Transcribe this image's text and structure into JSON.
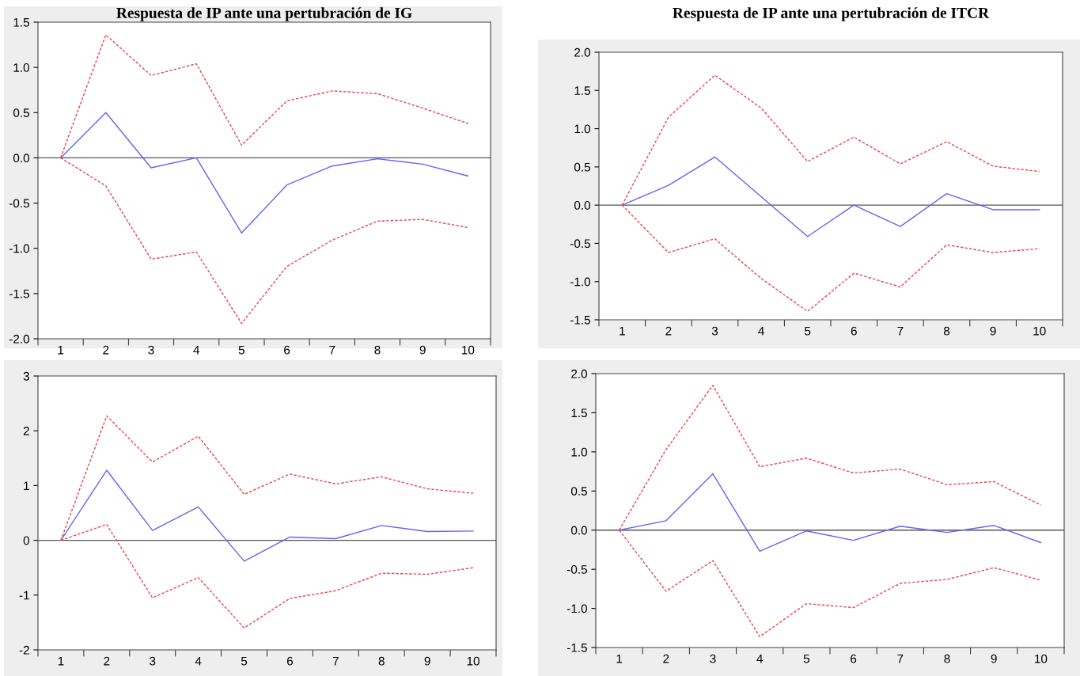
{
  "chart_data": [
    {
      "type": "line",
      "title": "Respuesta de IP ante una pertubración de IG",
      "categories": [
        "1",
        "2",
        "3",
        "4",
        "5",
        "6",
        "7",
        "8",
        "9",
        "10"
      ],
      "ylim": [
        -2.0,
        1.5
      ],
      "yticks": [
        1.5,
        {
          "value": 1,
          "label": "1.0"
        },
        0.5,
        {
          "value": 0,
          "label": "0.0"
        },
        -0.5,
        {
          "value": -1,
          "label": "-1.0"
        },
        -1.5,
        {
          "value": -2,
          "label": "-2.0"
        }
      ],
      "grid": false,
      "legend": false,
      "ref_lines": [
        {
          "axis": "y",
          "value": 0,
          "color": "#555555"
        }
      ],
      "series": [
        {
          "color": "#6464f0",
          "line_style": "solid",
          "values": [
            0,
            0.5,
            -0.11,
            0.0,
            -0.83,
            -0.3,
            -0.09,
            -0.01,
            -0.07,
            -0.2
          ]
        },
        {
          "color": "#e8484f",
          "line_style": "dashed",
          "values": [
            0,
            1.36,
            0.91,
            1.04,
            0.14,
            0.63,
            0.74,
            0.71,
            0.55,
            0.38
          ]
        },
        {
          "color": "#e8484f",
          "line_style": "dashed",
          "values": [
            0,
            -0.31,
            -1.12,
            -1.04,
            -1.83,
            -1.2,
            -0.91,
            -0.7,
            -0.68,
            -0.77
          ]
        }
      ]
    },
    {
      "type": "line",
      "title": "Respuesta de IP ante una pertubración de ITCR",
      "categories": [
        "1",
        "2",
        "3",
        "4",
        "5",
        "6",
        "7",
        "8",
        "9",
        "10"
      ],
      "ylim": [
        -1.5,
        2.0
      ],
      "yticks": [
        {
          "value": 2,
          "label": "2.0"
        },
        1.5,
        {
          "value": 1,
          "label": "1.0"
        },
        0.5,
        {
          "value": 0,
          "label": "0.0"
        },
        -0.5,
        {
          "value": -1,
          "label": "-1.0"
        },
        -1.5
      ],
      "grid": false,
      "legend": false,
      "ref_lines": [
        {
          "axis": "y",
          "value": 0,
          "color": "#555555"
        }
      ],
      "series": [
        {
          "color": "#6464f0",
          "line_style": "solid",
          "values": [
            0,
            0.26,
            0.63,
            0.11,
            -0.41,
            0.0,
            -0.28,
            0.15,
            -0.06,
            -0.06
          ]
        },
        {
          "color": "#e8484f",
          "line_style": "dashed",
          "values": [
            0,
            1.15,
            1.7,
            1.27,
            0.57,
            0.89,
            0.54,
            0.83,
            0.51,
            0.44
          ]
        },
        {
          "color": "#e8484f",
          "line_style": "dashed",
          "values": [
            0,
            -0.62,
            -0.44,
            -0.96,
            -1.39,
            -0.89,
            -1.07,
            -0.52,
            -0.62,
            -0.57
          ]
        }
      ]
    },
    {
      "type": "line",
      "categories": [
        "1",
        "2",
        "3",
        "4",
        "5",
        "6",
        "7",
        "8",
        "9",
        "10"
      ],
      "ylim": [
        -2,
        3
      ],
      "yticks": [
        3,
        2,
        1,
        0,
        -1,
        -2
      ],
      "grid": false,
      "legend": false,
      "ref_lines": [
        {
          "axis": "y",
          "value": 0,
          "color": "#555555"
        }
      ],
      "series": [
        {
          "color": "#6464f0",
          "line_style": "solid",
          "values": [
            0,
            1.28,
            0.18,
            0.61,
            -0.38,
            0.06,
            0.03,
            0.27,
            0.16,
            0.17
          ]
        },
        {
          "color": "#e8484f",
          "line_style": "dashed",
          "values": [
            0,
            2.27,
            1.43,
            1.9,
            0.84,
            1.21,
            1.03,
            1.16,
            0.94,
            0.86
          ]
        },
        {
          "color": "#e8484f",
          "line_style": "dashed",
          "values": [
            0,
            0.29,
            -1.05,
            -0.68,
            -1.6,
            -1.06,
            -0.92,
            -0.6,
            -0.62,
            -0.5
          ]
        }
      ]
    },
    {
      "type": "line",
      "categories": [
        "1",
        "2",
        "3",
        "4",
        "5",
        "6",
        "7",
        "8",
        "9",
        "10"
      ],
      "ylim": [
        -1.5,
        2.0
      ],
      "yticks": [
        {
          "value": 2,
          "label": "2.0"
        },
        1.5,
        {
          "value": 1,
          "label": "1.0"
        },
        0.5,
        {
          "value": 0,
          "label": "0.0"
        },
        -0.5,
        {
          "value": -1,
          "label": "-1.0"
        },
        -1.5
      ],
      "grid": false,
      "legend": false,
      "ref_lines": [
        {
          "axis": "y",
          "value": 0,
          "color": "#555555"
        }
      ],
      "series": [
        {
          "color": "#6464f0",
          "line_style": "solid",
          "values": [
            0,
            0.12,
            0.72,
            -0.27,
            -0.01,
            -0.13,
            0.05,
            -0.03,
            0.06,
            -0.16
          ]
        },
        {
          "color": "#e8484f",
          "line_style": "dashed",
          "values": [
            0,
            1.03,
            1.85,
            0.81,
            0.92,
            0.73,
            0.78,
            0.58,
            0.62,
            0.32
          ]
        },
        {
          "color": "#e8484f",
          "line_style": "dashed",
          "values": [
            0,
            -0.78,
            -0.39,
            -1.36,
            -0.94,
            -0.99,
            -0.68,
            -0.63,
            -0.48,
            -0.64
          ]
        }
      ]
    }
  ]
}
